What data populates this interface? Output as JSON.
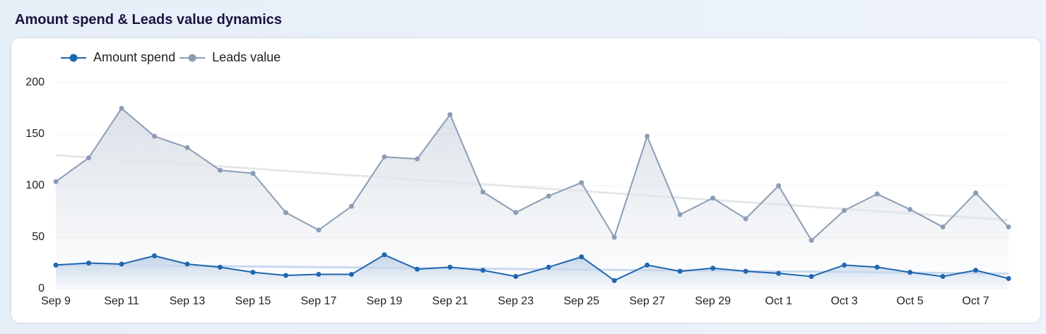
{
  "chart_data": {
    "type": "line",
    "title": "Amount spend & Leads value dynamics",
    "categories": [
      "Sep 9",
      null,
      "Sep 11",
      null,
      "Sep 13",
      null,
      "Sep 15",
      null,
      "Sep 17",
      null,
      "Sep 19",
      null,
      "Sep 21",
      null,
      "Sep 23",
      null,
      "Sep 25",
      null,
      "Sep 27",
      null,
      "Sep 29",
      null,
      "Oct 1",
      null,
      "Oct 3",
      null,
      "Oct 5",
      null,
      "Oct 7",
      null
    ],
    "series": [
      {
        "name": "Amount spend",
        "color": "#1f66b0",
        "values": [
          23,
          25,
          24,
          32,
          24,
          21,
          16,
          13,
          14,
          14,
          33,
          19,
          21,
          18,
          12,
          21,
          31,
          8,
          23,
          17,
          20,
          17,
          15,
          12,
          23,
          21,
          16,
          12,
          18,
          10
        ]
      },
      {
        "name": "Leads value",
        "color": "#8a9db5",
        "values": [
          104,
          127,
          175,
          148,
          137,
          115,
          112,
          74,
          57,
          80,
          128,
          126,
          169,
          94,
          74,
          90,
          103,
          50,
          148,
          72,
          88,
          68,
          100,
          47,
          76,
          92,
          77,
          60,
          93,
          60
        ]
      }
    ],
    "ylim": [
      0,
      200
    ],
    "yticks": [
      0,
      50,
      100,
      150,
      200
    ],
    "grid": true,
    "trendline": true,
    "legend": "top-left"
  }
}
